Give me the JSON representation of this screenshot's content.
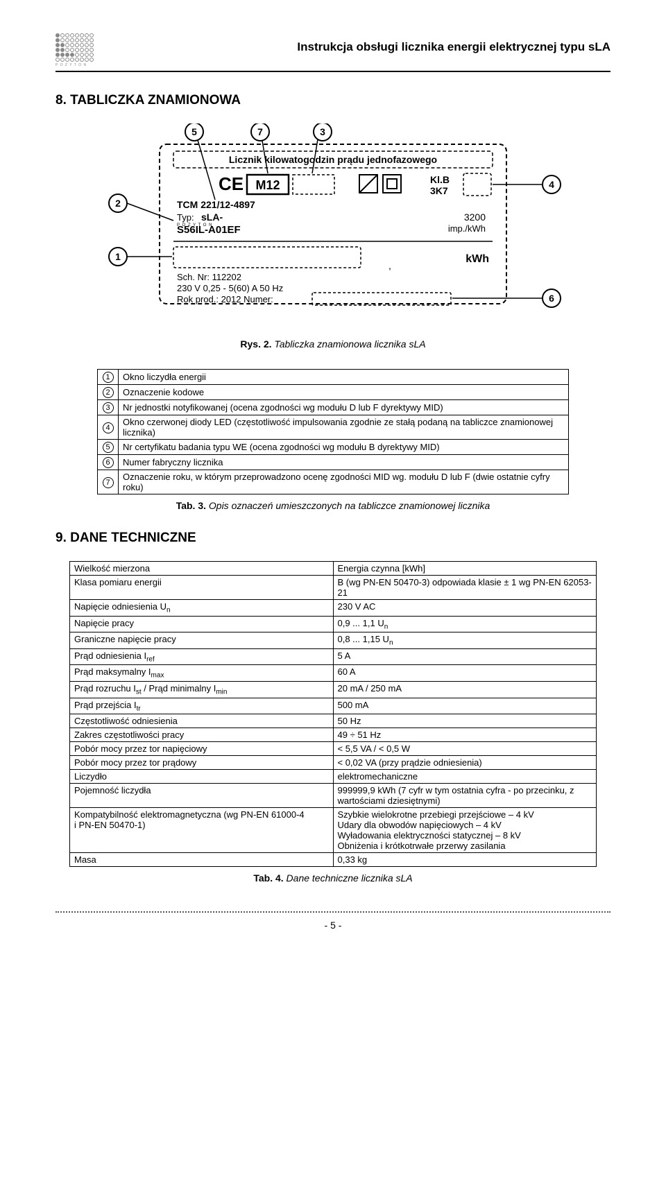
{
  "header": {
    "title": "Instrukcja obsługi licznika energii elektrycznej typu sLA"
  },
  "section8": {
    "heading": "8. TABLICZKA ZNAMIONOWA",
    "caption_bold": "Rys. 2.",
    "caption_rest": " Tabliczka znamionowa licznika sLA",
    "nameplate": {
      "line1": "Licznik kilowatogodzin prądu jednofazowego",
      "ce": "CE",
      "m12": "M12",
      "klb": "Kl.B",
      "k3k7": "3K7",
      "tcm": "TCM 221/12-4897",
      "typ_label": "Typ:",
      "typ_val": "sLA-",
      "model": "S56IL-A01EF",
      "impkwh_val": "3200",
      "impkwh_unit": "imp./kWh",
      "sch": "Sch. Nr: 112202",
      "volt": "230 V  0,25 - 5(60) A  50 Hz",
      "rok": "Rok prod.: 2012    Numer:",
      "kwh": "kWh",
      "pozyton": "P O Z Y T O N"
    },
    "legend": [
      {
        "n": "1",
        "t": "Okno liczydła energii"
      },
      {
        "n": "2",
        "t": "Oznaczenie kodowe"
      },
      {
        "n": "3",
        "t": "Nr jednostki notyfikowanej (ocena zgodności wg modułu D lub F dyrektywy MID)"
      },
      {
        "n": "4",
        "t": "Okno czerwonej diody LED (częstotliwość impulsowania zgodnie ze stałą podaną na tabliczce znamionowej licznika)"
      },
      {
        "n": "5",
        "t": "Nr certyfikatu badania typu WE (ocena zgodności wg modułu B dyrektywy MID)"
      },
      {
        "n": "6",
        "t": "Numer fabryczny licznika"
      },
      {
        "n": "7",
        "t": "Oznaczenie roku, w którym przeprowadzono ocenę zgodności MID wg. modułu D lub F (dwie ostatnie cyfry roku)"
      }
    ],
    "tab3_bold": "Tab. 3.",
    "tab3_rest": " Opis oznaczeń umieszczonych na tabliczce znamionowej licznika"
  },
  "section9": {
    "heading": "9. DANE TECHNICZNE",
    "rows": [
      {
        "l": "Wielkość mierzona",
        "r": "Energia czynna [kWh]"
      },
      {
        "l": "Klasa pomiaru energii",
        "r": "B (wg PN-EN 50470-3) odpowiada klasie ± 1 wg PN-EN 62053-21"
      },
      {
        "l": "Napięcie odniesienia U<sub>n</sub>",
        "r": "230 V AC"
      },
      {
        "l": "Napięcie pracy",
        "r": "0,9 ... 1,1 U<sub>n</sub>"
      },
      {
        "l": "Graniczne napięcie pracy",
        "r": "0,8 ... 1,15 U<sub>n</sub>"
      },
      {
        "l": "Prąd odniesienia I<sub>ref</sub>",
        "r": "5 A"
      },
      {
        "l": "Prąd maksymalny I<sub>max</sub>",
        "r": "60 A"
      },
      {
        "l": "Prąd rozruchu I<sub>st</sub> / Prąd minimalny I<sub>min</sub>",
        "r": "20 mA / 250 mA"
      },
      {
        "l": "Prąd przejścia I<sub>tr</sub>",
        "r": "500 mA"
      },
      {
        "l": "Częstotliwość odniesienia",
        "r": "50 Hz"
      },
      {
        "l": "Zakres częstotliwości pracy",
        "r": "49 ÷ 51 Hz"
      },
      {
        "l": "Pobór mocy przez tor napięciowy",
        "r": "< 5,5 VA / < 0,5 W"
      },
      {
        "l": "Pobór mocy przez tor prądowy",
        "r": "< 0,02 VA (przy prądzie odniesienia)"
      },
      {
        "l": "Liczydło",
        "r": "elektromechaniczne"
      },
      {
        "l": "Pojemność liczydła",
        "r": "999999,9 kWh (7 cyfr w tym ostatnia cyfra - po przecinku, z wartościami dziesiętnymi)"
      },
      {
        "l": "Kompatybilność elektromagnetyczna (wg PN-EN 61000-4<br>i PN-EN 50470-1)",
        "r": "Szybkie wielokrotne przebiegi przejściowe – 4 kV<br>Udary dla obwodów napięciowych – 4 kV<br>Wyładowania elektryczności statycznej – 8 kV<br>Obniżenia i krótkotrwałe przerwy zasilania"
      },
      {
        "l": "Masa",
        "r": "0,33 kg"
      }
    ],
    "tab4_bold": "Tab. 4.",
    "tab4_rest": " Dane techniczne licznika sLA"
  },
  "footer": {
    "page": "- 5 -"
  }
}
